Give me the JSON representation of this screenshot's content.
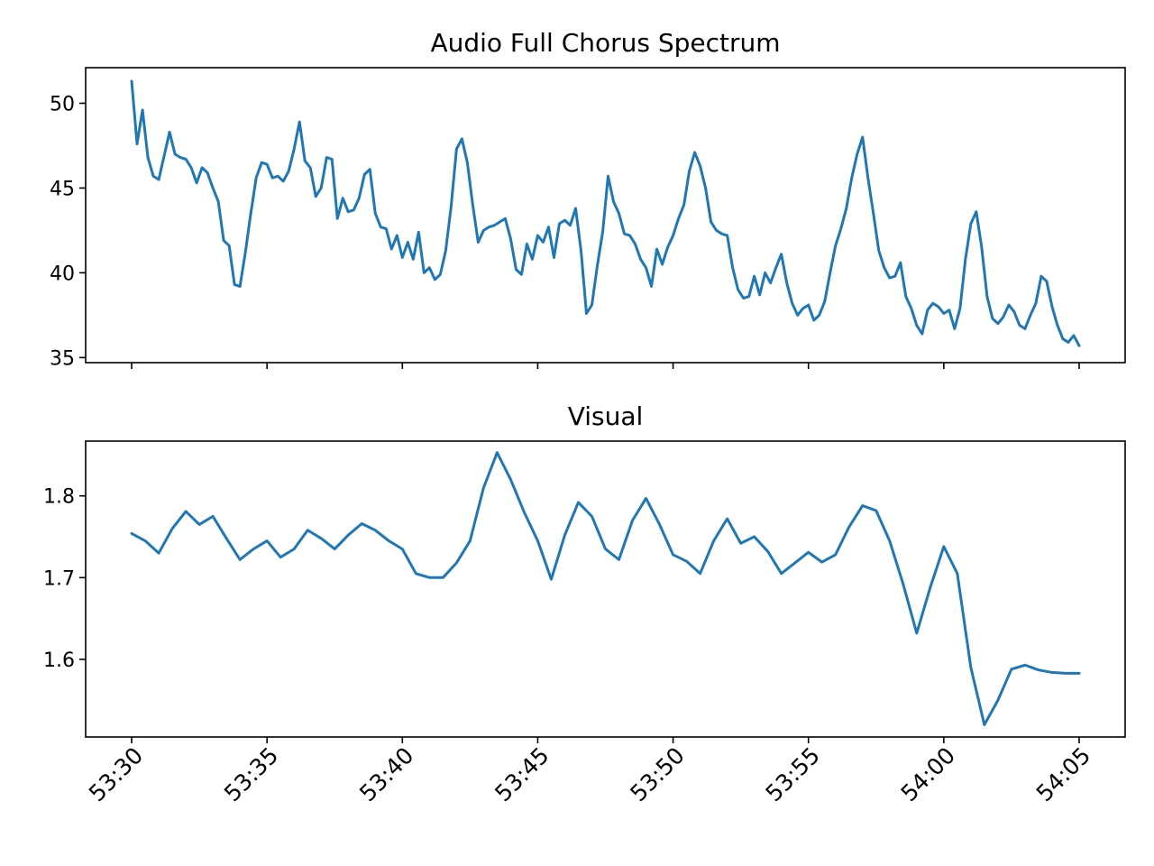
{
  "chart_data": [
    {
      "type": "line",
      "title": "Audio Full Chorus Spectrum",
      "xlabel": "",
      "ylabel": "",
      "x_ticks": [
        "53:30",
        "53:35",
        "53:40",
        "53:45",
        "53:50",
        "53:55",
        "54:00",
        "54:05"
      ],
      "x_tick_labels_visible": false,
      "y_ticks": [
        35,
        40,
        45,
        50
      ],
      "ylim": [
        34.7,
        52.1
      ],
      "xlim": [
        "53:28.3",
        "54:06.7"
      ],
      "grid": false,
      "color": "#1f77b4",
      "series": [
        {
          "x": [
            "53:30.0",
            "53:30.2",
            "53:30.4",
            "53:30.6",
            "53:30.8",
            "53:31.0",
            "53:31.2",
            "53:31.4",
            "53:31.6",
            "53:31.8",
            "53:32.0",
            "53:32.2",
            "53:32.4",
            "53:32.6",
            "53:32.8",
            "53:33.0",
            "53:33.2",
            "53:33.4",
            "53:33.6",
            "53:33.8",
            "53:34.0",
            "53:34.2",
            "53:34.4",
            "53:34.6",
            "53:34.8",
            "53:35.0",
            "53:35.2",
            "53:35.4",
            "53:35.6",
            "53:35.8",
            "53:36.0",
            "53:36.2",
            "53:36.4",
            "53:36.6",
            "53:36.8",
            "53:37.0",
            "53:37.2",
            "53:37.4",
            "53:37.6",
            "53:37.8",
            "53:38.0",
            "53:38.2",
            "53:38.4",
            "53:38.6",
            "53:38.8",
            "53:39.0",
            "53:39.2",
            "53:39.4",
            "53:39.6",
            "53:39.8",
            "53:40.0",
            "53:40.2",
            "53:40.4",
            "53:40.6",
            "53:40.8",
            "53:41.0",
            "53:41.2",
            "53:41.4",
            "53:41.6",
            "53:41.8",
            "53:42.0",
            "53:42.2",
            "53:42.4",
            "53:42.6",
            "53:42.8",
            "53:43.0",
            "53:43.2",
            "53:43.4",
            "53:43.6",
            "53:43.8",
            "53:44.0",
            "53:44.2",
            "53:44.4",
            "53:44.6",
            "53:44.8",
            "53:45.0",
            "53:45.2",
            "53:45.4",
            "53:45.6",
            "53:45.8",
            "53:46.0",
            "53:46.2",
            "53:46.4",
            "53:46.6",
            "53:46.8",
            "53:47.0",
            "53:47.2",
            "53:47.4",
            "53:47.6",
            "53:47.8",
            "53:48.0",
            "53:48.2",
            "53:48.4",
            "53:48.6",
            "53:48.8",
            "53:49.0",
            "53:49.2",
            "53:49.4",
            "53:49.6",
            "53:49.8",
            "53:50.0",
            "53:50.2",
            "53:50.4",
            "53:50.6",
            "53:50.8",
            "53:51.0",
            "53:51.2",
            "53:51.4",
            "53:51.6",
            "53:51.8",
            "53:52.0",
            "53:52.2",
            "53:52.4",
            "53:52.6",
            "53:52.8",
            "53:53.0",
            "53:53.2",
            "53:53.4",
            "53:53.6",
            "53:53.8",
            "53:54.0",
            "53:54.2",
            "53:54.4",
            "53:54.6",
            "53:54.8",
            "53:55.0",
            "53:55.2",
            "53:55.4",
            "53:55.6",
            "53:55.8",
            "53:56.0",
            "53:56.2",
            "53:56.4",
            "53:56.6",
            "53:56.8",
            "53:57.0",
            "53:57.2",
            "53:57.4",
            "53:57.6",
            "53:57.8",
            "53:58.0",
            "53:58.2",
            "53:58.4",
            "53:58.6",
            "53:58.8",
            "53:59.0",
            "53:59.2",
            "53:59.4",
            "53:59.6",
            "53:59.8",
            "54:00.0",
            "54:00.2",
            "54:00.4",
            "54:00.6",
            "54:00.8",
            "54:01.0",
            "54:01.2",
            "54:01.4",
            "54:01.6",
            "54:01.8",
            "54:02.0",
            "54:02.2",
            "54:02.4",
            "54:02.6",
            "54:02.8",
            "54:03.0",
            "54:03.2",
            "54:03.4",
            "54:03.6",
            "54:03.8",
            "54:04.0",
            "54:04.2",
            "54:04.4",
            "54:04.6",
            "54:04.8",
            "54:05.0"
          ],
          "y": [
            51.3,
            47.6,
            49.6,
            46.8,
            45.7,
            45.5,
            46.9,
            48.3,
            47.0,
            46.8,
            46.7,
            46.2,
            45.3,
            46.2,
            45.9,
            45.0,
            44.2,
            41.9,
            41.6,
            39.3,
            39.2,
            41.2,
            43.5,
            45.6,
            46.5,
            46.4,
            45.6,
            45.7,
            45.4,
            46.0,
            47.3,
            48.9,
            46.6,
            46.2,
            44.5,
            45.0,
            46.8,
            46.7,
            43.2,
            44.4,
            43.6,
            43.7,
            44.4,
            45.8,
            46.1,
            43.5,
            42.7,
            42.6,
            41.4,
            42.2,
            40.9,
            41.8,
            40.8,
            42.4,
            40.0,
            40.3,
            39.6,
            39.9,
            41.3,
            43.9,
            47.3,
            47.9,
            46.5,
            44.0,
            41.8,
            42.5,
            42.7,
            42.8,
            43.0,
            43.2,
            42.0,
            40.2,
            39.9,
            41.7,
            40.8,
            42.2,
            41.8,
            42.7,
            40.9,
            42.9,
            43.1,
            42.8,
            43.8,
            41.3,
            37.6,
            38.1,
            40.4,
            42.4,
            45.7,
            44.2,
            43.5,
            42.3,
            42.2,
            41.7,
            40.8,
            40.3,
            39.2,
            41.4,
            40.5,
            41.5,
            42.2,
            43.2,
            44.0,
            46.0,
            47.1,
            46.3,
            45.0,
            43.0,
            42.5,
            42.3,
            42.2,
            40.3,
            39.0,
            38.5,
            38.6,
            39.8,
            38.7,
            40.0,
            39.4,
            40.3,
            41.1,
            39.4,
            38.2,
            37.5,
            37.9,
            38.1,
            37.2,
            37.5,
            38.3,
            40.0,
            41.6,
            42.6,
            43.8,
            45.6,
            47.0,
            48.0,
            45.6,
            43.5,
            41.3,
            40.3,
            39.7,
            39.8,
            40.6,
            38.6,
            37.9,
            36.9,
            36.4,
            37.8,
            38.2,
            38.0,
            37.6,
            37.8,
            36.7,
            37.9,
            40.8,
            42.9,
            43.6,
            41.5,
            38.6,
            37.3,
            37.0,
            37.4,
            38.1,
            37.7,
            36.9,
            36.7,
            37.5,
            38.2,
            39.8,
            39.5,
            38.0,
            36.9,
            36.1,
            35.9,
            36.3,
            35.7
          ]
        }
      ]
    },
    {
      "type": "line",
      "title": "Visual",
      "xlabel": "",
      "ylabel": "",
      "x_ticks": [
        "53:30",
        "53:35",
        "53:40",
        "53:45",
        "53:50",
        "53:55",
        "54:00",
        "54:05"
      ],
      "x_tick_labels_visible": true,
      "y_ticks": [
        1.6,
        1.7,
        1.8
      ],
      "ylim": [
        1.505,
        1.867
      ],
      "xlim": [
        "53:28.3",
        "54:06.7"
      ],
      "grid": false,
      "color": "#1f77b4",
      "series": [
        {
          "x": [
            "53:30.0",
            "53:30.5",
            "53:31.0",
            "53:31.5",
            "53:32.0",
            "53:32.5",
            "53:33.0",
            "53:33.5",
            "53:34.0",
            "53:34.5",
            "53:35.0",
            "53:35.5",
            "53:36.0",
            "53:36.5",
            "53:37.0",
            "53:37.5",
            "53:38.0",
            "53:38.5",
            "53:39.0",
            "53:39.5",
            "53:40.0",
            "53:40.5",
            "53:41.0",
            "53:41.5",
            "53:42.0",
            "53:42.5",
            "53:43.0",
            "53:43.5",
            "53:44.0",
            "53:44.5",
            "53:45.0",
            "53:45.5",
            "53:46.0",
            "53:46.5",
            "53:47.0",
            "53:47.5",
            "53:48.0",
            "53:48.5",
            "53:49.0",
            "53:49.5",
            "53:50.0",
            "53:50.5",
            "53:51.0",
            "53:51.5",
            "53:52.0",
            "53:52.5",
            "53:53.0",
            "53:53.5",
            "53:54.0",
            "53:54.5",
            "53:55.0",
            "53:55.5",
            "53:56.0",
            "53:56.5",
            "53:57.0",
            "53:57.5",
            "53:58.0",
            "53:58.5",
            "53:59.0",
            "53:59.5",
            "54:00.0",
            "54:00.5",
            "54:01.0",
            "54:01.5",
            "54:02.0",
            "54:02.5",
            "54:03.0",
            "54:03.5",
            "54:04.0",
            "54:04.5",
            "54:05.0"
          ],
          "y": [
            1.754,
            1.745,
            1.73,
            1.76,
            1.781,
            1.765,
            1.775,
            1.748,
            1.722,
            1.735,
            1.745,
            1.725,
            1.735,
            1.758,
            1.748,
            1.735,
            1.752,
            1.766,
            1.758,
            1.745,
            1.735,
            1.705,
            1.7,
            1.7,
            1.718,
            1.745,
            1.81,
            1.853,
            1.82,
            1.78,
            1.745,
            1.698,
            1.752,
            1.792,
            1.775,
            1.735,
            1.722,
            1.77,
            1.797,
            1.765,
            1.728,
            1.72,
            1.705,
            1.745,
            1.772,
            1.742,
            1.75,
            1.732,
            1.705,
            1.718,
            1.731,
            1.719,
            1.728,
            1.762,
            1.788,
            1.782,
            1.745,
            1.692,
            1.632,
            1.688,
            1.738,
            1.705,
            1.59,
            1.52,
            1.55,
            1.588,
            1.593,
            1.587,
            1.584,
            1.583,
            1.583
          ]
        }
      ]
    }
  ]
}
